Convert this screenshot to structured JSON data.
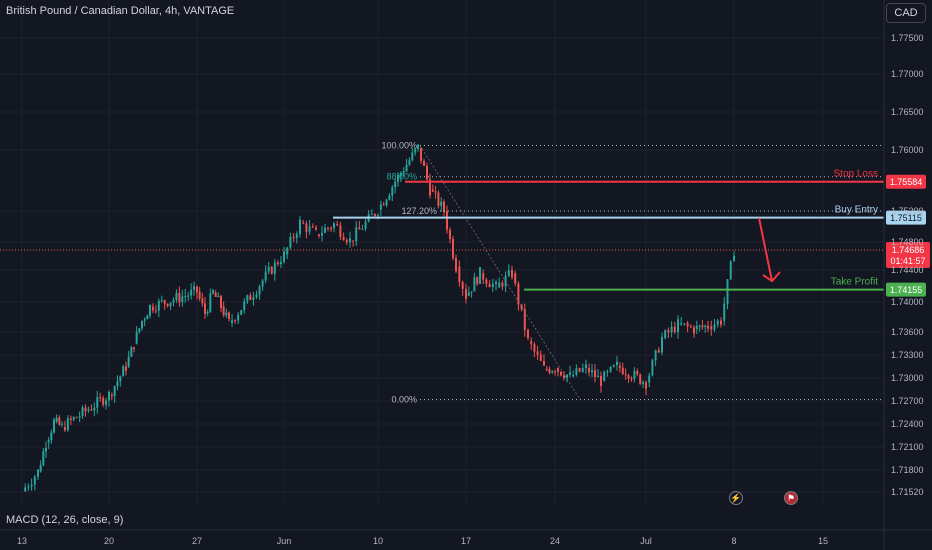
{
  "header": {
    "title": "British Pound / Canadian Dollar, 4h, VANTAGE",
    "currency_button": "CAD"
  },
  "indicator": {
    "label": "MACD (12, 26, close, 9)"
  },
  "icons": {
    "bolt": "lightning-icon",
    "flag": "flag-icon"
  },
  "colors": {
    "background": "#131722",
    "up": "#26a69a",
    "down": "#ef5350",
    "stop_loss": "#f23645",
    "buy_entry": "#a8d4f0",
    "take_profit": "#4caf50",
    "fib_level": "#b2b5be"
  },
  "chart_data": {
    "type": "candlestick",
    "title": "British Pound / Canadian Dollar, 4h, VANTAGE",
    "y_axis": {
      "ticks": [
        "1.77500",
        "1.77000",
        "1.76500",
        "1.76000",
        "1.75200",
        "1.74800",
        "1.74400",
        "1.74000",
        "1.73600",
        "1.73300",
        "1.73000",
        "1.72700",
        "1.72400",
        "1.72100",
        "1.71800",
        "1.71520"
      ]
    },
    "x_axis": {
      "ticks": [
        "13",
        "20",
        "27",
        "Jun",
        "10",
        "17",
        "24",
        "Jul",
        "8",
        "15"
      ]
    },
    "price_path": [
      [
        "13",
        1.7153
      ],
      [
        "15",
        1.7178
      ],
      [
        "16",
        1.7216
      ],
      [
        "17",
        1.7243
      ],
      [
        "19",
        1.7236
      ],
      [
        "20",
        1.7278
      ],
      [
        "22",
        1.7315
      ],
      [
        "23",
        1.7345
      ],
      [
        "24",
        1.7375
      ],
      [
        "25",
        1.7394
      ],
      [
        "27",
        1.7413
      ],
      [
        "28",
        1.7385
      ],
      [
        "29",
        1.7412
      ],
      [
        "30",
        1.7394
      ],
      [
        "31",
        1.7372
      ],
      [
        "Jun",
        1.7462
      ],
      [
        "3",
        1.7505
      ],
      [
        "4",
        1.749
      ],
      [
        "5",
        1.7503
      ],
      [
        "6",
        1.7482
      ],
      [
        "10",
        1.7522
      ],
      [
        "11",
        1.7565
      ],
      [
        "12",
        1.7603
      ],
      [
        "13",
        1.7548
      ],
      [
        "14",
        1.752
      ],
      [
        "16",
        1.7445
      ],
      [
        "17",
        1.7408
      ],
      [
        "18",
        1.7436
      ],
      [
        "19",
        1.7418
      ],
      [
        "20",
        1.7436
      ],
      [
        "21",
        1.7348
      ],
      [
        "22",
        1.7312
      ],
      [
        "24",
        1.7313
      ],
      [
        "25",
        1.7302
      ],
      [
        "26",
        1.7313
      ],
      [
        "27",
        1.7296
      ],
      [
        "28",
        1.7316
      ],
      [
        "Jul",
        1.7294
      ],
      [
        "2",
        1.7352
      ],
      [
        "3",
        1.737
      ],
      [
        "4",
        1.7364
      ],
      [
        "5",
        1.7368
      ],
      [
        "7",
        1.7375
      ],
      [
        "8",
        1.7468
      ]
    ],
    "fibonacci": [
      {
        "label": "100.00%",
        "price": 1.7606
      },
      {
        "label": "88.00%",
        "price": 1.7565
      },
      {
        "label": "127.20%",
        "price": 1.752
      },
      {
        "label": "0.00%",
        "price": 1.7272
      }
    ],
    "levels": [
      {
        "name": "Stop Loss",
        "price": "1.75584",
        "color": "#f23645"
      },
      {
        "name": "Buy Entry",
        "price": "1.75115",
        "color": "#a8d4f0"
      },
      {
        "name": "Take Profit",
        "price": "1.74155",
        "color": "#4caf50"
      }
    ],
    "current_price": {
      "price": "1.74686",
      "countdown": "01:41:57"
    },
    "arrow": {
      "from_date": "8",
      "from_price": 1.7511,
      "to_date": "15",
      "to_price": 1.742
    }
  }
}
